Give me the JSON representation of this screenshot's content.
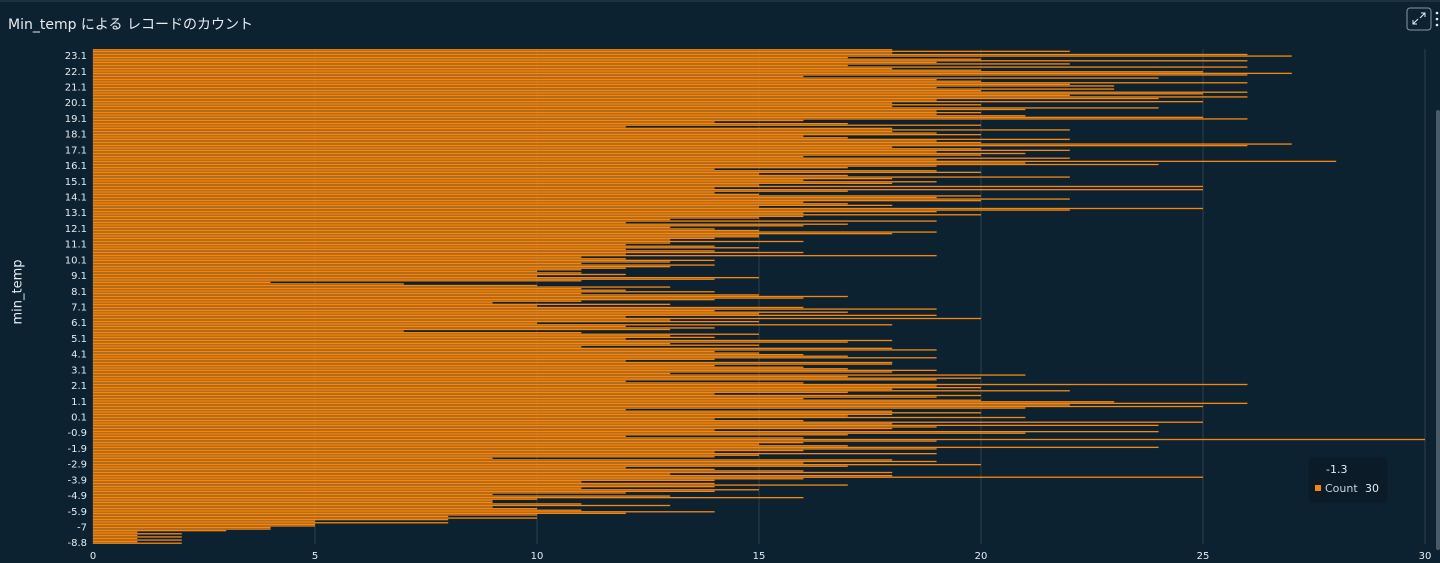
{
  "chart_data": {
    "type": "barh",
    "title": "Min_temp による レコードのカウント",
    "y_label": "min_temp",
    "categories": [
      "-8.8",
      null,
      null,
      null,
      null,
      null,
      null,
      null,
      null,
      null,
      "-7",
      null,
      null,
      null,
      null,
      null,
      null,
      null,
      null,
      null,
      "-5.9",
      null,
      null,
      null,
      null,
      null,
      null,
      null,
      null,
      null,
      "-4.9",
      null,
      null,
      null,
      null,
      null,
      null,
      null,
      null,
      null,
      "-3.9",
      null,
      null,
      null,
      null,
      null,
      null,
      null,
      null,
      null,
      "-2.9",
      null,
      null,
      null,
      null,
      null,
      null,
      null,
      null,
      null,
      "-1.9",
      null,
      null,
      null,
      null,
      null,
      null,
      null,
      null,
      null,
      "-0.9",
      null,
      null,
      null,
      null,
      null,
      null,
      null,
      null,
      null,
      "0.1",
      null,
      null,
      null,
      null,
      null,
      null,
      null,
      null,
      null,
      "1.1",
      null,
      null,
      null,
      null,
      null,
      null,
      null,
      null,
      null,
      "2.1",
      null,
      null,
      null,
      null,
      null,
      null,
      null,
      null,
      null,
      "3.1",
      null,
      null,
      null,
      null,
      null,
      null,
      null,
      null,
      null,
      "4.1",
      null,
      null,
      null,
      null,
      null,
      null,
      null,
      null,
      null,
      "5.1",
      null,
      null,
      null,
      null,
      null,
      null,
      null,
      null,
      null,
      "6.1",
      null,
      null,
      null,
      null,
      null,
      null,
      null,
      null,
      null,
      "7.1",
      null,
      null,
      null,
      null,
      null,
      null,
      null,
      null,
      null,
      "8.1",
      null,
      null,
      null,
      null,
      null,
      null,
      null,
      null,
      null,
      "9.1",
      null,
      null,
      null,
      null,
      null,
      null,
      null,
      null,
      null,
      "10.1",
      null,
      null,
      null,
      null,
      null,
      null,
      null,
      null,
      null,
      "11.1",
      null,
      null,
      null,
      null,
      null,
      null,
      null,
      null,
      null,
      "12.1",
      null,
      null,
      null,
      null,
      null,
      null,
      null,
      null,
      null,
      "13.1",
      null,
      null,
      null,
      null,
      null,
      null,
      null,
      null,
      null,
      "14.1",
      null,
      null,
      null,
      null,
      null,
      null,
      null,
      null,
      null,
      "15.1",
      null,
      null,
      null,
      null,
      null,
      null,
      null,
      null,
      null,
      "16.1",
      null,
      null,
      null,
      null,
      null,
      null,
      null,
      null,
      null,
      "17.1",
      null,
      null,
      null,
      null,
      null,
      null,
      null,
      null,
      null,
      "18.1",
      null,
      null,
      null,
      null,
      null,
      null,
      null,
      null,
      null,
      "19.1",
      null,
      null,
      null,
      null,
      null,
      null,
      null,
      null,
      null,
      "20.1",
      null,
      null,
      null,
      null,
      null,
      null,
      null,
      null,
      null,
      "21.1",
      null,
      null,
      null,
      null,
      null,
      null,
      null,
      null,
      null,
      "22.1",
      null,
      null,
      null,
      null,
      null,
      null,
      null,
      null,
      null,
      "23.1",
      null,
      null,
      null,
      null
    ],
    "series": [
      {
        "name": "Count",
        "color": "#f5860f",
        "values": [
          2,
          1,
          2,
          1,
          2,
          1,
          2,
          1,
          3,
          4,
          4,
          5,
          5,
          8,
          5,
          8,
          10,
          8,
          10,
          12,
          14,
          11,
          10,
          9,
          13,
          11,
          9,
          9,
          10,
          16,
          13,
          9,
          12,
          14,
          15,
          11,
          14,
          17,
          14,
          11,
          14,
          16,
          25,
          18,
          13,
          18,
          16,
          14,
          12,
          17,
          20,
          16,
          19,
          18,
          9,
          14,
          15,
          19,
          14,
          16,
          19,
          24,
          17,
          15,
          16,
          19,
          30,
          16,
          12,
          17,
          21,
          24,
          14,
          18,
          19,
          24,
          18,
          25,
          16,
          14,
          21,
          17,
          18,
          20,
          18,
          12,
          21,
          25,
          22,
          26,
          23,
          20,
          16,
          19,
          20,
          14,
          17,
          22,
          18,
          20,
          19,
          26,
          16,
          12,
          19,
          20,
          17,
          21,
          13,
          18,
          19,
          17,
          16,
          14,
          18,
          18,
          12,
          14,
          19,
          17,
          16,
          15,
          14,
          19,
          18,
          11,
          15,
          13,
          17,
          18,
          12,
          14,
          13,
          15,
          11,
          7,
          13,
          14,
          12,
          18,
          10,
          15,
          13,
          20,
          12,
          19,
          15,
          17,
          14,
          19,
          16,
          10,
          13,
          9,
          11,
          14,
          16,
          17,
          15,
          11,
          14,
          12,
          11,
          13,
          10,
          7,
          4,
          11,
          14,
          15,
          10,
          12,
          11,
          10,
          11,
          12,
          13,
          14,
          11,
          13,
          14,
          12,
          11,
          19,
          12,
          16,
          14,
          12,
          15,
          14,
          12,
          13,
          16,
          13,
          14,
          15,
          15,
          18,
          19,
          15,
          14,
          13,
          16,
          17,
          12,
          19,
          13,
          15,
          16,
          20,
          16,
          19,
          22,
          25,
          15,
          18,
          17,
          16,
          20,
          22,
          19,
          20,
          15,
          14,
          17,
          25,
          14,
          25,
          15,
          18,
          19,
          16,
          18,
          22,
          17,
          15,
          20,
          19,
          14,
          17,
          19,
          24,
          21,
          28,
          19,
          22,
          16,
          20,
          21,
          19,
          22,
          20,
          18,
          26,
          27,
          20,
          19,
          22,
          17,
          16,
          20,
          19,
          18,
          22,
          18,
          12,
          20,
          17,
          14,
          16,
          26,
          25,
          21,
          19,
          20,
          19,
          21,
          24,
          18,
          20,
          18,
          25,
          19,
          24,
          26,
          22,
          25,
          26,
          20,
          23,
          19,
          23,
          22,
          26,
          20,
          19,
          24,
          16,
          26,
          27,
          25,
          20,
          18,
          26,
          17,
          22,
          19,
          26,
          20,
          17,
          27,
          26,
          18,
          22,
          18
        ]
      }
    ],
    "xlim": [
      0,
      30
    ],
    "xticks": [
      0,
      5,
      10,
      15,
      20,
      25,
      30
    ],
    "grid": true,
    "hover": {
      "label": "-1.3",
      "series": "Count",
      "value": 30
    }
  }
}
